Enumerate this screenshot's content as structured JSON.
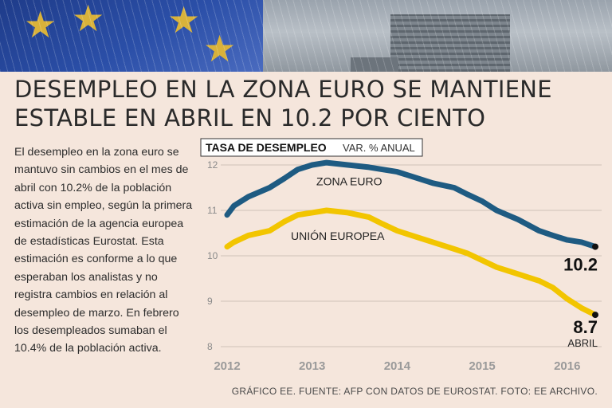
{
  "headline": "DESEMPLEO EN LA ZONA EURO SE MANTIENE ESTABLE EN ABRIL EN 10.2 POR CIENTO",
  "body": "El desempleo en la zona euro se mantuvo sin cambios en el mes de abril con 10.2% de la población activa sin empleo, según la primera estimación de la agencia europea de estadísticas Eurostat. Esta estimación es conforme a lo que esperaban los analistas y no registra cambios en relación al desempleo de marzo. En febrero los desempleados sumaban el 10.4% de la población activa.",
  "credit": "GRÁFICO EE. FUENTE: AFP CON DATOS DE EUROSTAT. FOTO: EE ARCHIVO.",
  "chart_data": {
    "type": "line",
    "title": "TASA DE DESEMPLEO",
    "subtitle": "VAR. % ANUAL",
    "x_ticks": [
      "2012",
      "2013",
      "2014",
      "2015",
      "2016"
    ],
    "y_ticks": [
      "12",
      "11",
      "10",
      "9",
      "8"
    ],
    "ylim": [
      8,
      12
    ],
    "xlim": [
      2012.0,
      2016.33
    ],
    "grid": true,
    "series": [
      {
        "name": "ZONA EURO",
        "color": "#1e5b82",
        "x": [
          2012.0,
          2012.08,
          2012.25,
          2012.5,
          2012.67,
          2012.83,
          2013.0,
          2013.17,
          2013.42,
          2013.67,
          2013.83,
          2014.0,
          2014.17,
          2014.42,
          2014.67,
          2014.83,
          2015.0,
          2015.17,
          2015.42,
          2015.67,
          2015.83,
          2016.0,
          2016.17,
          2016.33
        ],
        "y": [
          10.9,
          11.1,
          11.3,
          11.5,
          11.7,
          11.9,
          12.0,
          12.05,
          12.0,
          11.95,
          11.9,
          11.85,
          11.75,
          11.6,
          11.5,
          11.35,
          11.2,
          11.0,
          10.8,
          10.55,
          10.45,
          10.35,
          10.3,
          10.2
        ],
        "end_label": "10.2"
      },
      {
        "name": "UNIÓN EUROPEA",
        "color": "#f2c500",
        "x": [
          2012.0,
          2012.08,
          2012.25,
          2012.5,
          2012.67,
          2012.83,
          2013.0,
          2013.17,
          2013.42,
          2013.67,
          2013.83,
          2014.0,
          2014.17,
          2014.42,
          2014.67,
          2014.83,
          2015.0,
          2015.17,
          2015.42,
          2015.67,
          2015.83,
          2016.0,
          2016.17,
          2016.33
        ],
        "y": [
          10.2,
          10.3,
          10.45,
          10.55,
          10.75,
          10.9,
          10.95,
          11.0,
          10.95,
          10.85,
          10.7,
          10.55,
          10.45,
          10.3,
          10.15,
          10.05,
          9.9,
          9.75,
          9.6,
          9.45,
          9.3,
          9.05,
          8.85,
          8.7
        ],
        "end_label": "8.7"
      }
    ],
    "annotations": [
      "ABRIL"
    ]
  }
}
